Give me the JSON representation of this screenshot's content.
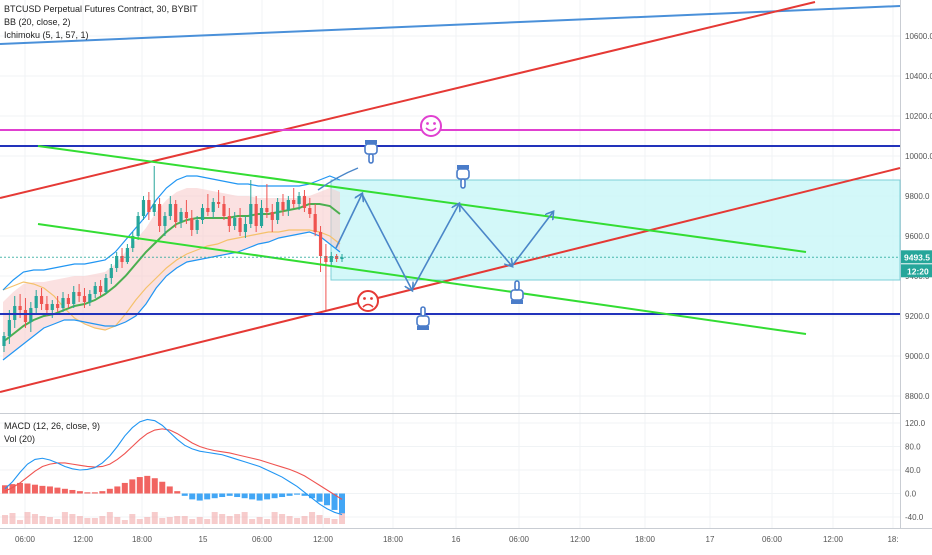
{
  "legend": {
    "title": "BTCUSD Perpetual Futures Contract, 30, BYBIT",
    "bb": "BB (20, close, 2)",
    "ichimoku": "Ichimoku (5, 1, 57, 1)",
    "macd": "MACD (12, 26, close, 9)",
    "vol": "Vol (20)"
  },
  "badges": {
    "price": "9493.5",
    "countdown": "12:20"
  },
  "colors": {
    "up": "#26a69a",
    "down": "#ef5350",
    "bb_band": "#2196f3",
    "bb_basis": "#4caf50",
    "ichimoku_line": "#f5c16b",
    "cloud": "#f8c9c9",
    "blue_trend": "#4a90d9",
    "red_line": "#e53935",
    "green_line": "#33dd33",
    "navy_line": "#2233bb",
    "magenta_line": "#e040d0",
    "zone_fill": "#c8f6f8",
    "zone_border": "#7ccfd8",
    "arrow": "#4a86c8",
    "macd_line": "#2196f3",
    "signal_line": "#ef5350"
  },
  "icons": [
    "pointing-down-hand-icon",
    "pointing-up-hand-icon",
    "smiley-icon",
    "frown-icon"
  ],
  "chart_data": [
    {
      "type": "candlestick",
      "title": "BTCUSD Perpetual Futures Contract, 30, BYBIT",
      "y_ticks": [
        8800,
        9000,
        9200,
        9400,
        9600,
        9800,
        10000,
        10200,
        10400,
        10600
      ],
      "y_tick_labels": [
        "8800.0",
        "9000.0",
        "9200.0",
        "9400.0",
        "9600.0",
        "9800.0",
        "10000.0",
        "10200.0",
        "10400.0",
        "10600.0"
      ],
      "ylim": [
        8720,
        10780
      ],
      "x_labels": [
        "06:00",
        "12:00",
        "18:00",
        "15",
        "06:00",
        "12:00",
        "18:00",
        "16",
        "06:00",
        "12:00",
        "18:00",
        "17",
        "06:00",
        "12:00",
        "18:"
      ],
      "current_price": 9493.5,
      "candles": [
        {
          "o": 9050,
          "h": 9120,
          "l": 9020,
          "c": 9100
        },
        {
          "o": 9100,
          "h": 9230,
          "l": 9060,
          "c": 9180
        },
        {
          "o": 9180,
          "h": 9300,
          "l": 9140,
          "c": 9250
        },
        {
          "o": 9250,
          "h": 9310,
          "l": 9190,
          "c": 9230
        },
        {
          "o": 9230,
          "h": 9290,
          "l": 9140,
          "c": 9170
        },
        {
          "o": 9170,
          "h": 9270,
          "l": 9120,
          "c": 9240
        },
        {
          "o": 9240,
          "h": 9330,
          "l": 9210,
          "c": 9300
        },
        {
          "o": 9300,
          "h": 9340,
          "l": 9230,
          "c": 9260
        },
        {
          "o": 9260,
          "h": 9300,
          "l": 9200,
          "c": 9230
        },
        {
          "o": 9230,
          "h": 9280,
          "l": 9190,
          "c": 9260
        },
        {
          "o": 9260,
          "h": 9300,
          "l": 9220,
          "c": 9240
        },
        {
          "o": 9240,
          "h": 9320,
          "l": 9220,
          "c": 9290
        },
        {
          "o": 9290,
          "h": 9310,
          "l": 9240,
          "c": 9260
        },
        {
          "o": 9260,
          "h": 9350,
          "l": 9240,
          "c": 9320
        },
        {
          "o": 9320,
          "h": 9360,
          "l": 9270,
          "c": 9300
        },
        {
          "o": 9300,
          "h": 9340,
          "l": 9240,
          "c": 9270
        },
        {
          "o": 9270,
          "h": 9330,
          "l": 9250,
          "c": 9310
        },
        {
          "o": 9310,
          "h": 9370,
          "l": 9290,
          "c": 9350
        },
        {
          "o": 9350,
          "h": 9380,
          "l": 9300,
          "c": 9320
        },
        {
          "o": 9320,
          "h": 9410,
          "l": 9310,
          "c": 9390
        },
        {
          "o": 9390,
          "h": 9460,
          "l": 9360,
          "c": 9440
        },
        {
          "o": 9440,
          "h": 9520,
          "l": 9420,
          "c": 9500
        },
        {
          "o": 9500,
          "h": 9540,
          "l": 9440,
          "c": 9470
        },
        {
          "o": 9470,
          "h": 9560,
          "l": 9460,
          "c": 9540
        },
        {
          "o": 9540,
          "h": 9620,
          "l": 9520,
          "c": 9600
        },
        {
          "o": 9600,
          "h": 9720,
          "l": 9580,
          "c": 9700
        },
        {
          "o": 9700,
          "h": 9800,
          "l": 9680,
          "c": 9780
        },
        {
          "o": 9780,
          "h": 9820,
          "l": 9680,
          "c": 9720
        },
        {
          "o": 9720,
          "h": 9950,
          "l": 9700,
          "c": 9760
        },
        {
          "o": 9760,
          "h": 9790,
          "l": 9620,
          "c": 9650
        },
        {
          "o": 9650,
          "h": 9720,
          "l": 9600,
          "c": 9700
        },
        {
          "o": 9700,
          "h": 9800,
          "l": 9680,
          "c": 9760
        },
        {
          "o": 9760,
          "h": 9780,
          "l": 9640,
          "c": 9670
        },
        {
          "o": 9670,
          "h": 9740,
          "l": 9640,
          "c": 9720
        },
        {
          "o": 9720,
          "h": 9780,
          "l": 9660,
          "c": 9690
        },
        {
          "o": 9690,
          "h": 9730,
          "l": 9600,
          "c": 9630
        },
        {
          "o": 9630,
          "h": 9700,
          "l": 9610,
          "c": 9680
        },
        {
          "o": 9680,
          "h": 9760,
          "l": 9660,
          "c": 9740
        },
        {
          "o": 9740,
          "h": 9810,
          "l": 9700,
          "c": 9720
        },
        {
          "o": 9720,
          "h": 9790,
          "l": 9690,
          "c": 9770
        },
        {
          "o": 9770,
          "h": 9830,
          "l": 9740,
          "c": 9760
        },
        {
          "o": 9760,
          "h": 9800,
          "l": 9680,
          "c": 9700
        },
        {
          "o": 9700,
          "h": 9740,
          "l": 9620,
          "c": 9650
        },
        {
          "o": 9650,
          "h": 9720,
          "l": 9630,
          "c": 9690
        },
        {
          "o": 9690,
          "h": 9740,
          "l": 9600,
          "c": 9620
        },
        {
          "o": 9620,
          "h": 9700,
          "l": 9590,
          "c": 9660
        },
        {
          "o": 9660,
          "h": 9880,
          "l": 9640,
          "c": 9760
        },
        {
          "o": 9760,
          "h": 9800,
          "l": 9620,
          "c": 9650
        },
        {
          "o": 9650,
          "h": 9780,
          "l": 9640,
          "c": 9740
        },
        {
          "o": 9740,
          "h": 9860,
          "l": 9690,
          "c": 9720
        },
        {
          "o": 9720,
          "h": 9760,
          "l": 9620,
          "c": 9680
        },
        {
          "o": 9680,
          "h": 9790,
          "l": 9660,
          "c": 9770
        },
        {
          "o": 9770,
          "h": 9810,
          "l": 9700,
          "c": 9730
        },
        {
          "o": 9730,
          "h": 9800,
          "l": 9700,
          "c": 9780
        },
        {
          "o": 9780,
          "h": 9840,
          "l": 9740,
          "c": 9760
        },
        {
          "o": 9760,
          "h": 9820,
          "l": 9730,
          "c": 9800
        },
        {
          "o": 9800,
          "h": 9830,
          "l": 9720,
          "c": 9740
        },
        {
          "o": 9740,
          "h": 9790,
          "l": 9690,
          "c": 9710
        },
        {
          "o": 9710,
          "h": 9760,
          "l": 9600,
          "c": 9620
        },
        {
          "o": 9620,
          "h": 9650,
          "l": 9420,
          "c": 9500
        },
        {
          "o": 9500,
          "h": 9560,
          "l": 9230,
          "c": 9470
        },
        {
          "o": 9470,
          "h": 9520,
          "l": 9450,
          "c": 9500
        },
        {
          "o": 9500,
          "h": 9510,
          "l": 9470,
          "c": 9485
        },
        {
          "o": 9485,
          "h": 9510,
          "l": 9470,
          "c": 9493.5
        }
      ],
      "indicators": {
        "bb_upper": [
          9330,
          9380,
          9420,
          9430,
          9430,
          9440,
          9450,
          9460,
          9460,
          9470,
          9480,
          9520,
          9580,
          9640,
          9700,
          9780,
          9840,
          9880,
          9900,
          9900,
          9890,
          9880,
          9870,
          9860,
          9860,
          9850,
          9850,
          9850,
          9850,
          9850,
          9860,
          9880,
          9900,
          9880
        ],
        "bb_basis": [
          9070,
          9110,
          9150,
          9180,
          9200,
          9210,
          9230,
          9250,
          9260,
          9280,
          9310,
          9350,
          9400,
          9460,
          9520,
          9570,
          9620,
          9660,
          9680,
          9690,
          9690,
          9690,
          9690,
          9700,
          9700,
          9710,
          9710,
          9720,
          9730,
          9740,
          9760,
          9760,
          9750,
          9710
        ],
        "bb_lower": [
          8980,
          9020,
          9060,
          9100,
          9140,
          9160,
          9180,
          9180,
          9170,
          9160,
          9150,
          9150,
          9170,
          9200,
          9260,
          9340,
          9400,
          9440,
          9470,
          9480,
          9490,
          9500,
          9510,
          9520,
          9540,
          9560,
          9570,
          9590,
          9600,
          9610,
          9620,
          9600,
          9560,
          9520
        ],
        "ichimoku_line": [
          9330,
          9350,
          9370,
          9360,
          9340,
          9300,
          9240,
          9190,
          9160,
          9140,
          9130,
          9150,
          9210,
          9280,
          9340,
          9390,
          9440,
          9480,
          9510,
          9530,
          9550,
          9560,
          9580,
          9590,
          9600,
          9610,
          9620,
          9620,
          9630,
          9630,
          9630,
          9620,
          9600,
          9560
        ]
      },
      "annotations": {
        "blue_trendline": [
          {
            "x": "start",
            "y": 10560
          },
          {
            "x": "end",
            "y": 10750
          }
        ],
        "red_channel_upper": [
          {
            "x": "start",
            "y": 9790
          },
          {
            "x": "end",
            "y": 10770
          }
        ],
        "red_channel_lower": [
          {
            "x": "start",
            "y": 8820
          },
          {
            "x": "end",
            "y": 9940
          }
        ],
        "green_channel_upper": [
          {
            "y_start": 10050,
            "y_end": 9520
          }
        ],
        "green_channel_lower": [
          {
            "y_start": 9660,
            "y_end": 9110
          }
        ],
        "navy_horizontal_upper": 10050,
        "navy_horizontal_lower": 9210,
        "magenta_horizontal": 10130,
        "zone": [
          9380,
          9880
        ]
      }
    },
    {
      "type": "bar",
      "title": "MACD (12, 26, close, 9)",
      "y_ticks": [
        -40,
        0,
        40,
        80,
        120
      ],
      "y_tick_labels": [
        "-40.0",
        "0.0",
        "40.0",
        "80.0",
        "120.0"
      ],
      "ylim": [
        -48,
        140
      ],
      "histogram": [
        14,
        16,
        18,
        17,
        15,
        13,
        12,
        10,
        8,
        6,
        4,
        2,
        2,
        4,
        8,
        12,
        18,
        24,
        28,
        30,
        26,
        20,
        12,
        4,
        -4,
        -10,
        -12,
        -10,
        -8,
        -6,
        -4,
        -6,
        -8,
        -10,
        -12,
        -10,
        -8,
        -6,
        -4,
        -2,
        -4,
        -8,
        -14,
        -20,
        -28,
        -34
      ],
      "macd_line": [
        8,
        20,
        36,
        50,
        58,
        60,
        57,
        52,
        46,
        42,
        40,
        41,
        44,
        52,
        64,
        80,
        98,
        112,
        122,
        126,
        124,
        116,
        104,
        92,
        82,
        76,
        72,
        70,
        68,
        66,
        62,
        58,
        54,
        50,
        46,
        40,
        34,
        28,
        20,
        12,
        2,
        -8,
        -18,
        -26,
        -32,
        -36
      ],
      "signal_line": [
        4,
        10,
        18,
        28,
        38,
        46,
        50,
        52,
        52,
        50,
        48,
        46,
        45,
        46,
        50,
        58,
        68,
        80,
        92,
        102,
        108,
        110,
        108,
        102,
        94,
        86,
        80,
        76,
        73,
        71,
        69,
        66,
        63,
        60,
        57,
        53,
        49,
        45,
        41,
        36,
        30,
        22,
        14,
        6,
        -2,
        -10
      ]
    }
  ]
}
